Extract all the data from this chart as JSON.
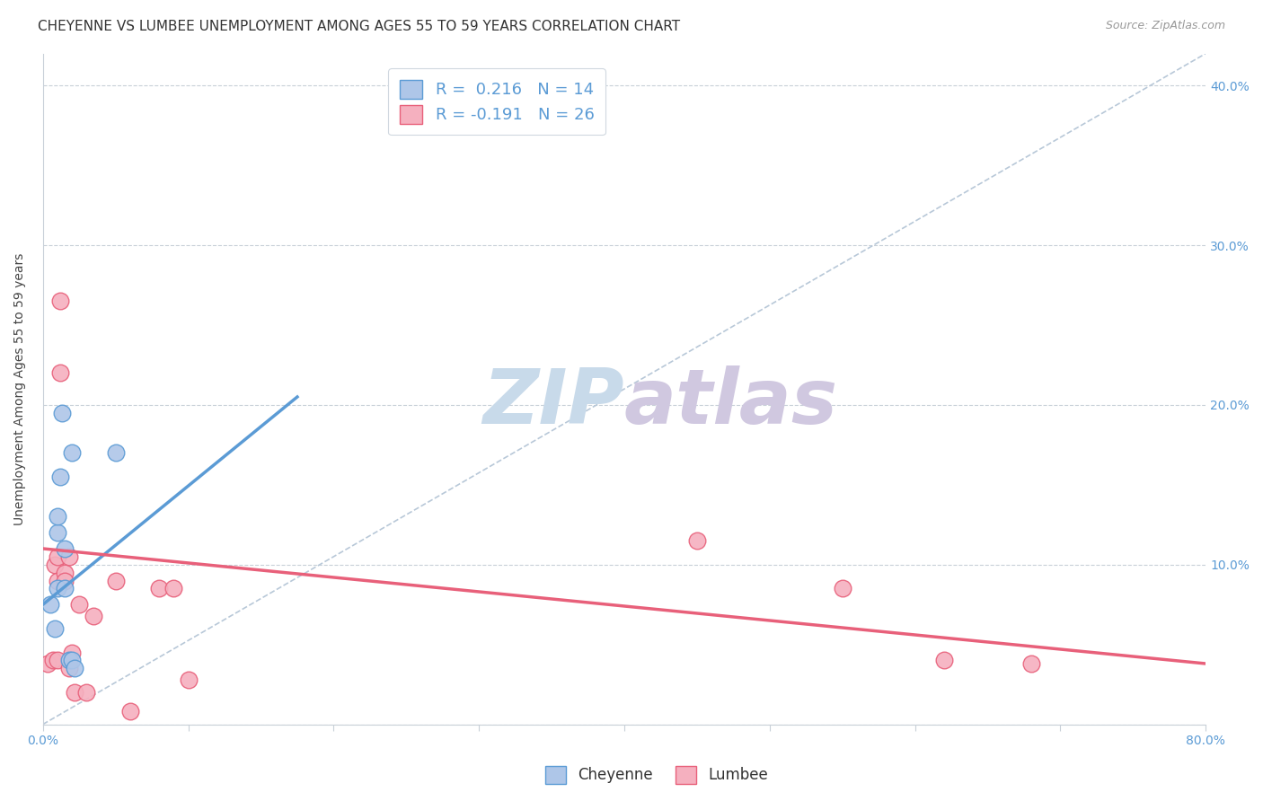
{
  "title": "CHEYENNE VS LUMBEE UNEMPLOYMENT AMONG AGES 55 TO 59 YEARS CORRELATION CHART",
  "source": "Source: ZipAtlas.com",
  "ylabel": "Unemployment Among Ages 55 to 59 years",
  "cheyenne_R": 0.216,
  "cheyenne_N": 14,
  "lumbee_R": -0.191,
  "lumbee_N": 26,
  "cheyenne_color": "#aec6e8",
  "lumbee_color": "#f5b0bf",
  "cheyenne_line_color": "#5b9bd5",
  "lumbee_line_color": "#e8607a",
  "diagonal_color": "#b8c8d8",
  "watermark_main_color": "#c8daea",
  "watermark_alt_color": "#d0c8e0",
  "xlim": [
    0,
    0.8
  ],
  "ylim": [
    0,
    0.42
  ],
  "xticks": [
    0.0,
    0.1,
    0.2,
    0.3,
    0.4,
    0.5,
    0.6,
    0.7,
    0.8
  ],
  "yticks": [
    0.0,
    0.1,
    0.2,
    0.3,
    0.4
  ],
  "xticklabels": [
    "0.0%",
    "",
    "",
    "",
    "",
    "",
    "",
    "",
    "80.0%"
  ],
  "yticklabels_right": [
    "",
    "10.0%",
    "20.0%",
    "30.0%",
    "40.0%"
  ],
  "cheyenne_x": [
    0.005,
    0.008,
    0.01,
    0.01,
    0.01,
    0.012,
    0.013,
    0.015,
    0.015,
    0.018,
    0.02,
    0.02,
    0.022,
    0.05
  ],
  "cheyenne_y": [
    0.075,
    0.06,
    0.085,
    0.12,
    0.13,
    0.155,
    0.195,
    0.085,
    0.11,
    0.04,
    0.04,
    0.17,
    0.035,
    0.17
  ],
  "lumbee_x": [
    0.003,
    0.007,
    0.008,
    0.01,
    0.01,
    0.01,
    0.012,
    0.012,
    0.015,
    0.015,
    0.018,
    0.018,
    0.02,
    0.022,
    0.025,
    0.03,
    0.035,
    0.05,
    0.06,
    0.08,
    0.09,
    0.1,
    0.45,
    0.55,
    0.62,
    0.68
  ],
  "lumbee_y": [
    0.038,
    0.04,
    0.1,
    0.09,
    0.105,
    0.04,
    0.265,
    0.22,
    0.095,
    0.09,
    0.105,
    0.035,
    0.045,
    0.02,
    0.075,
    0.02,
    0.068,
    0.09,
    0.008,
    0.085,
    0.085,
    0.028,
    0.115,
    0.085,
    0.04,
    0.038
  ],
  "cheyenne_line_x": [
    0.0,
    0.175
  ],
  "cheyenne_line_y": [
    0.075,
    0.205
  ],
  "lumbee_line_x": [
    0.0,
    0.8
  ],
  "lumbee_line_y": [
    0.11,
    0.038
  ],
  "title_fontsize": 11,
  "label_fontsize": 10,
  "tick_fontsize": 10,
  "legend_fontsize": 12
}
